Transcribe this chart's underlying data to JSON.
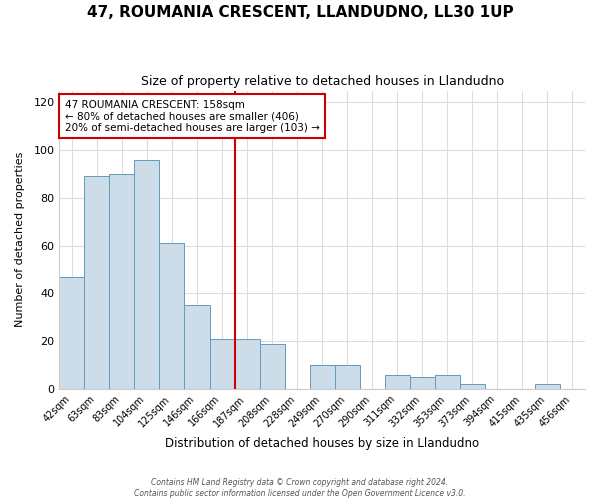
{
  "title": "47, ROUMANIA CRESCENT, LLANDUDNO, LL30 1UP",
  "subtitle": "Size of property relative to detached houses in Llandudno",
  "xlabel": "Distribution of detached houses by size in Llandudno",
  "ylabel": "Number of detached properties",
  "bar_labels": [
    "42sqm",
    "63sqm",
    "83sqm",
    "104sqm",
    "125sqm",
    "146sqm",
    "166sqm",
    "187sqm",
    "208sqm",
    "228sqm",
    "249sqm",
    "270sqm",
    "290sqm",
    "311sqm",
    "332sqm",
    "353sqm",
    "373sqm",
    "394sqm",
    "415sqm",
    "435sqm",
    "456sqm"
  ],
  "bar_values": [
    47,
    89,
    90,
    96,
    61,
    35,
    21,
    21,
    19,
    0,
    10,
    10,
    0,
    6,
    5,
    6,
    2,
    0,
    0,
    2,
    0
  ],
  "bar_color": "#ccdce8",
  "bar_edge_color": "#6699bb",
  "ylim": [
    0,
    125
  ],
  "yticks": [
    0,
    20,
    40,
    60,
    80,
    100,
    120
  ],
  "vline_color": "#cc0000",
  "vline_position": 6.5,
  "annotation_title": "47 ROUMANIA CRESCENT: 158sqm",
  "annotation_line1": "← 80% of detached houses are smaller (406)",
  "annotation_line2": "20% of semi-detached houses are larger (103) →",
  "annotation_box_color": "#cc0000",
  "footer1": "Contains HM Land Registry data © Crown copyright and database right 2024.",
  "footer2": "Contains public sector information licensed under the Open Government Licence v3.0.",
  "background_color": "#ffffff",
  "plot_background": "#ffffff",
  "grid_color": "#dddddd"
}
